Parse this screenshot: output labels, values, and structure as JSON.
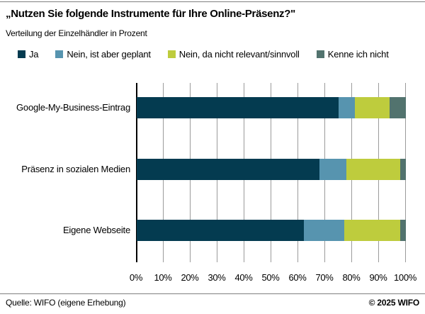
{
  "header": {
    "title": "„Nutzen Sie folgende Instrumente für Ihre Online-Präsenz?\"",
    "subtitle": "Verteilung der Einzelhändler in Prozent"
  },
  "chart_data": {
    "type": "bar",
    "orientation": "horizontal-stacked",
    "title": "„Nutzen Sie folgende Instrumente für Ihre Online-Präsenz?\"",
    "subtitle": "Verteilung der Einzelhändler in Prozent",
    "categories": [
      "Google-My-Business-Eintrag",
      "Präsenz in sozialen Medien",
      "Eigene Webseite"
    ],
    "series": [
      {
        "name": "Ja",
        "color": "#043B50",
        "values": [
          75,
          68,
          62
        ]
      },
      {
        "name": "Nein, ist aber geplant",
        "color": "#5794AF",
        "values": [
          6,
          10,
          15
        ]
      },
      {
        "name": "Nein, da nicht relevant/sinnvoll",
        "color": "#BECC3D",
        "values": [
          13,
          20,
          21
        ]
      },
      {
        "name": "Kenne ich nicht",
        "color": "#52736E",
        "values": [
          6,
          2,
          2
        ]
      }
    ],
    "xlim": [
      0,
      100
    ],
    "x_ticks": [
      "0%",
      "10%",
      "20%",
      "30%",
      "40%",
      "50%",
      "60%",
      "70%",
      "80%",
      "90%",
      "100%"
    ],
    "grid": "vertical",
    "legend_position": "top",
    "unit": "percent"
  },
  "footer": {
    "source": "Quelle: WIFO (eigene Erhebung)",
    "copyright": "© 2025 WIFO"
  },
  "style": {
    "gridline_color": "#9B9B9B",
    "axis_color": "#000000",
    "rule_color": "#7F7F7F"
  }
}
